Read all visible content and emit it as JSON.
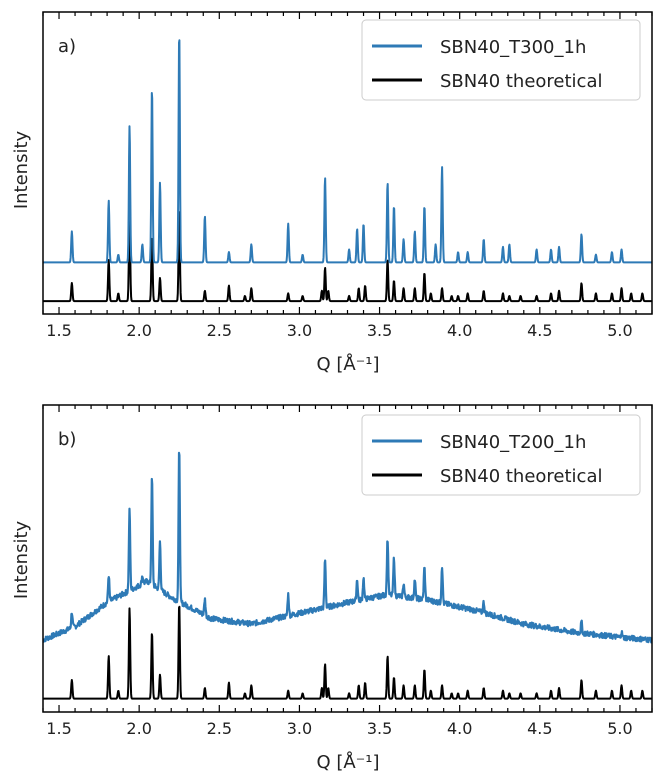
{
  "chart_data": [
    {
      "type": "line",
      "panel_label": "a)",
      "xlabel": "Q [Å⁻¹]",
      "ylabel": "Intensity",
      "xlim": [
        1.4,
        5.2
      ],
      "xticks": [
        "1.5",
        "2.0",
        "2.5",
        "3.0",
        "3.5",
        "4.0",
        "4.5",
        "5.0"
      ],
      "yticks_shown": false,
      "legend_position": "top-right",
      "series": [
        {
          "name": "SBN40_T300_1h",
          "color": "#2e7ab6",
          "baseline": 0.15,
          "peaks": [
            [
              1.58,
              0.12
            ],
            [
              1.81,
              0.24
            ],
            [
              1.87,
              0.03
            ],
            [
              1.94,
              0.53
            ],
            [
              2.02,
              0.07
            ],
            [
              2.08,
              0.68
            ],
            [
              2.13,
              0.31
            ],
            [
              2.25,
              0.9
            ],
            [
              2.41,
              0.18
            ],
            [
              2.56,
              0.04
            ],
            [
              2.7,
              0.07
            ],
            [
              2.93,
              0.15
            ],
            [
              3.02,
              0.03
            ],
            [
              3.16,
              0.33
            ],
            [
              3.31,
              0.05
            ],
            [
              3.36,
              0.13
            ],
            [
              3.4,
              0.15
            ],
            [
              3.55,
              0.31
            ],
            [
              3.59,
              0.22
            ],
            [
              3.65,
              0.09
            ],
            [
              3.72,
              0.12
            ],
            [
              3.78,
              0.22
            ],
            [
              3.85,
              0.07
            ],
            [
              3.89,
              0.37
            ],
            [
              3.99,
              0.04
            ],
            [
              4.05,
              0.04
            ],
            [
              4.15,
              0.09
            ],
            [
              4.27,
              0.06
            ],
            [
              4.31,
              0.07
            ],
            [
              4.48,
              0.05
            ],
            [
              4.57,
              0.05
            ],
            [
              4.62,
              0.06
            ],
            [
              4.76,
              0.11
            ],
            [
              4.85,
              0.03
            ],
            [
              4.95,
              0.04
            ],
            [
              5.01,
              0.05
            ]
          ]
        },
        {
          "name": "SBN40 theoretical",
          "color": "#000000",
          "baseline": 0.0,
          "peaks": [
            [
              1.58,
              0.07
            ],
            [
              1.81,
              0.16
            ],
            [
              1.87,
              0.03
            ],
            [
              1.94,
              0.34
            ],
            [
              2.08,
              0.25
            ],
            [
              2.13,
              0.09
            ],
            [
              2.25,
              0.36
            ],
            [
              2.41,
              0.04
            ],
            [
              2.56,
              0.06
            ],
            [
              2.66,
              0.02
            ],
            [
              2.7,
              0.05
            ],
            [
              2.93,
              0.03
            ],
            [
              3.02,
              0.02
            ],
            [
              3.14,
              0.04
            ],
            [
              3.16,
              0.13
            ],
            [
              3.18,
              0.04
            ],
            [
              3.31,
              0.02
            ],
            [
              3.37,
              0.05
            ],
            [
              3.41,
              0.06
            ],
            [
              3.55,
              0.16
            ],
            [
              3.59,
              0.08
            ],
            [
              3.65,
              0.05
            ],
            [
              3.72,
              0.05
            ],
            [
              3.78,
              0.11
            ],
            [
              3.82,
              0.03
            ],
            [
              3.89,
              0.05
            ],
            [
              3.95,
              0.02
            ],
            [
              3.99,
              0.02
            ],
            [
              4.05,
              0.03
            ],
            [
              4.15,
              0.04
            ],
            [
              4.27,
              0.03
            ],
            [
              4.31,
              0.02
            ],
            [
              4.38,
              0.02
            ],
            [
              4.48,
              0.02
            ],
            [
              4.57,
              0.03
            ],
            [
              4.62,
              0.04
            ],
            [
              4.76,
              0.07
            ],
            [
              4.85,
              0.03
            ],
            [
              4.95,
              0.03
            ],
            [
              5.01,
              0.05
            ],
            [
              5.07,
              0.03
            ],
            [
              5.14,
              0.03
            ]
          ]
        }
      ]
    },
    {
      "type": "line",
      "panel_label": "b)",
      "xlabel": "Q [Å⁻¹]",
      "ylabel": "Intensity",
      "xlim": [
        1.4,
        5.2
      ],
      "xticks": [
        "1.5",
        "2.0",
        "2.5",
        "3.0",
        "3.5",
        "4.0",
        "4.5",
        "5.0"
      ],
      "yticks_shown": false,
      "legend_position": "top-right",
      "series": [
        {
          "name": "SBN40_T200_1h",
          "color": "#2e7ab6",
          "background": [
            [
              1.4,
              0.22
            ],
            [
              1.6,
              0.27
            ],
            [
              1.8,
              0.36
            ],
            [
              2.05,
              0.44
            ],
            [
              2.2,
              0.38
            ],
            [
              2.45,
              0.3
            ],
            [
              2.7,
              0.28
            ],
            [
              3.0,
              0.32
            ],
            [
              3.3,
              0.36
            ],
            [
              3.55,
              0.39
            ],
            [
              3.8,
              0.37
            ],
            [
              4.1,
              0.33
            ],
            [
              4.4,
              0.28
            ],
            [
              4.7,
              0.25
            ],
            [
              5.0,
              0.23
            ],
            [
              5.2,
              0.22
            ]
          ],
          "noise": 0.01,
          "peaks": [
            [
              1.58,
              0.06
            ],
            [
              1.81,
              0.1
            ],
            [
              1.94,
              0.3
            ],
            [
              2.02,
              0.03
            ],
            [
              2.08,
              0.4
            ],
            [
              2.13,
              0.18
            ],
            [
              2.25,
              0.58
            ],
            [
              2.41,
              0.06
            ],
            [
              2.93,
              0.08
            ],
            [
              3.16,
              0.18
            ],
            [
              3.36,
              0.08
            ],
            [
              3.4,
              0.08
            ],
            [
              3.55,
              0.21
            ],
            [
              3.59,
              0.14
            ],
            [
              3.65,
              0.05
            ],
            [
              3.72,
              0.07
            ],
            [
              3.78,
              0.12
            ],
            [
              3.89,
              0.14
            ],
            [
              4.15,
              0.04
            ],
            [
              4.76,
              0.04
            ],
            [
              5.01,
              0.02
            ]
          ]
        },
        {
          "name": "SBN40 theoretical",
          "color": "#000000",
          "baseline": 0.0,
          "peaks": [
            [
              1.58,
              0.07
            ],
            [
              1.81,
              0.16
            ],
            [
              1.87,
              0.03
            ],
            [
              1.94,
              0.34
            ],
            [
              2.08,
              0.25
            ],
            [
              2.13,
              0.09
            ],
            [
              2.25,
              0.36
            ],
            [
              2.41,
              0.04
            ],
            [
              2.56,
              0.06
            ],
            [
              2.66,
              0.02
            ],
            [
              2.7,
              0.05
            ],
            [
              2.93,
              0.03
            ],
            [
              3.02,
              0.02
            ],
            [
              3.14,
              0.04
            ],
            [
              3.16,
              0.13
            ],
            [
              3.18,
              0.04
            ],
            [
              3.31,
              0.02
            ],
            [
              3.37,
              0.05
            ],
            [
              3.41,
              0.06
            ],
            [
              3.55,
              0.16
            ],
            [
              3.59,
              0.08
            ],
            [
              3.65,
              0.05
            ],
            [
              3.72,
              0.05
            ],
            [
              3.78,
              0.11
            ],
            [
              3.82,
              0.03
            ],
            [
              3.89,
              0.05
            ],
            [
              3.95,
              0.02
            ],
            [
              3.99,
              0.02
            ],
            [
              4.05,
              0.03
            ],
            [
              4.15,
              0.04
            ],
            [
              4.27,
              0.03
            ],
            [
              4.31,
              0.02
            ],
            [
              4.38,
              0.02
            ],
            [
              4.48,
              0.02
            ],
            [
              4.57,
              0.03
            ],
            [
              4.62,
              0.04
            ],
            [
              4.76,
              0.07
            ],
            [
              4.85,
              0.03
            ],
            [
              4.95,
              0.03
            ],
            [
              5.01,
              0.05
            ],
            [
              5.07,
              0.03
            ],
            [
              5.14,
              0.03
            ]
          ]
        }
      ]
    }
  ]
}
